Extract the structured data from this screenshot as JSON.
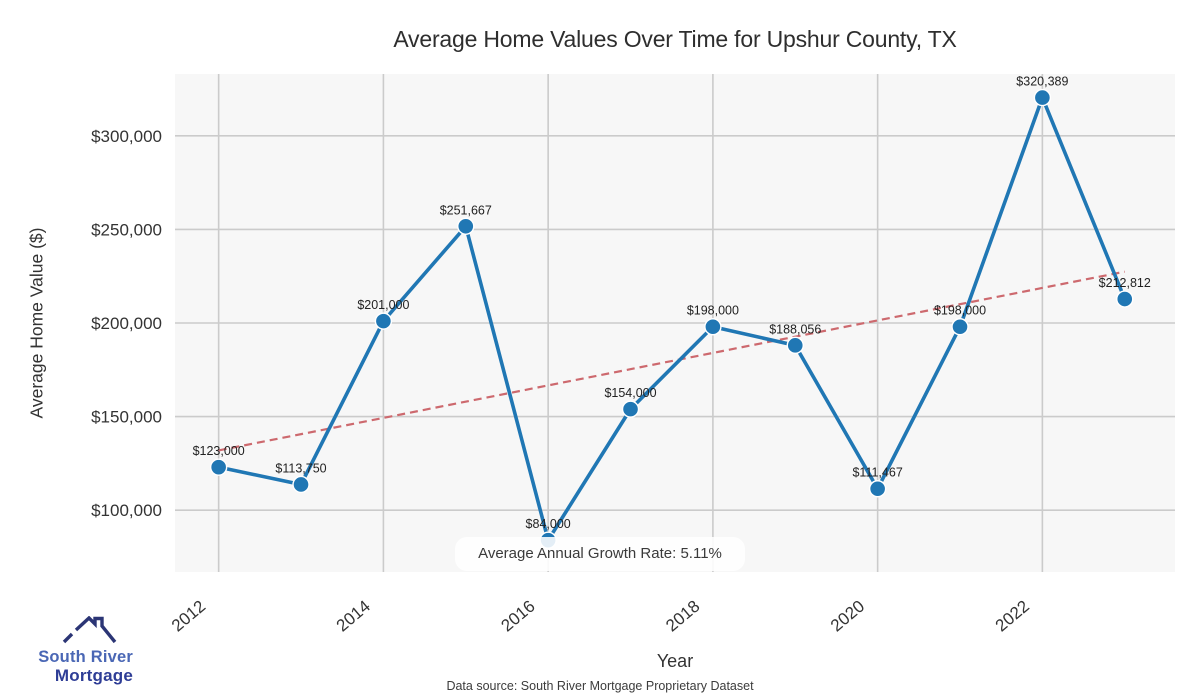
{
  "title": "Average Home Values Over Time for Upshur County, TX",
  "chart_data": {
    "type": "line",
    "title": "Average Home Values Over Time for Upshur County, TX",
    "xlabel": "Year",
    "ylabel": "Average Home Value ($)",
    "x": [
      2012,
      2013,
      2014,
      2015,
      2016,
      2017,
      2018,
      2019,
      2020,
      2021,
      2022,
      2023
    ],
    "values": [
      123000,
      113750,
      201000,
      251667,
      84000,
      154000,
      198000,
      188056,
      111467,
      198000,
      320389,
      212812
    ],
    "point_labels": [
      "$123,000",
      "$113,750",
      "$201,000",
      "$251,667",
      "$84,000",
      "$154,000",
      "$198,000",
      "$188,056",
      "$111,467",
      "$198,000",
      "$320,389",
      "$212,812"
    ],
    "xtick_labels": [
      "2012",
      "2014",
      "2016",
      "2018",
      "2020",
      "2022"
    ],
    "ytick_values": [
      100000,
      150000,
      200000,
      250000,
      300000
    ],
    "ytick_labels": [
      "$100,000",
      "$150,000",
      "$200,000",
      "$250,000",
      "$300,000"
    ],
    "xlim": [
      2011.47,
      2023.61
    ],
    "ylim": [
      67000,
      333000
    ],
    "grid": true,
    "legend_position": "none",
    "marker": "circle",
    "annotation": "Average Annual Growth Rate: 5.11%",
    "trendline": {
      "type": "linear-regression",
      "style": "dashed"
    }
  },
  "footer": {
    "source": "Data source: South River Mortgage Proprietary Dataset"
  },
  "logo": {
    "line1": "South River",
    "line2": "Mortgage"
  },
  "colors": {
    "series_line": "#2077b4",
    "marker_fill": "#2077b4",
    "marker_edge": "#ffffff",
    "trend_line": "#cd696e",
    "grid_line": "#cbcbcb",
    "plot_background": "#f7f7f7",
    "figure_background": "#ffffff",
    "tick_text": "#333333",
    "data_label_text": "#222222",
    "title_text": "#2e2e2e",
    "logo_roof": "#2b3575",
    "logo_text1": "#4a67b5",
    "logo_text2": "#2e3d96"
  }
}
